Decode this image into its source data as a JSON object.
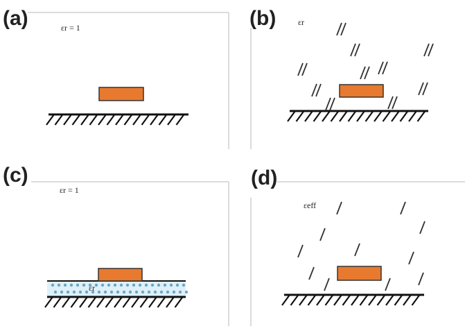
{
  "panels": [
    {
      "label": "(a)",
      "medium": "εr = 1"
    },
    {
      "label": "(b)",
      "medium": "εr"
    },
    {
      "label": "(c)",
      "medium": "εr = 1",
      "substrate": "εr"
    },
    {
      "label": "(d)",
      "medium": "εeff"
    }
  ]
}
